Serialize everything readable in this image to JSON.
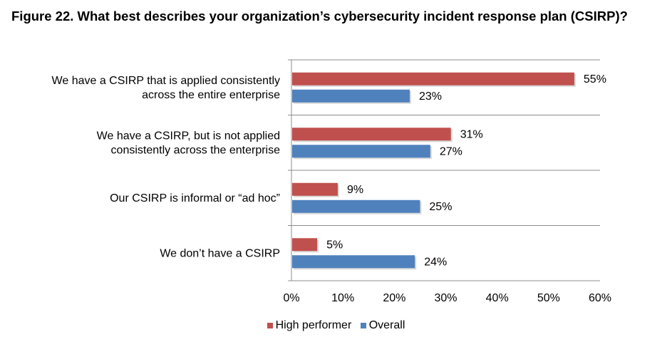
{
  "title": "Figure 22. What best describes your organization’s cybersecurity incident response plan (CSIRP)?",
  "colors": {
    "high_performer": "#C0504D",
    "overall": "#4F81BD",
    "grid": "#8C8C8C"
  },
  "chart_data": {
    "type": "bar",
    "orientation": "horizontal",
    "categories": [
      [
        "We have a CSIRP that is applied consistently",
        "across the entire enterprise"
      ],
      [
        "We have a CSIRP, but is not applied",
        "consistently across the enterprise"
      ],
      [
        "Our CSIRP is informal or “ad hoc”"
      ],
      [
        "We don’t have a CSIRP"
      ]
    ],
    "series": [
      {
        "name": "High performer",
        "values": [
          55,
          31,
          9,
          5
        ],
        "labels": [
          "55%",
          "31%",
          "9%",
          "5%"
        ]
      },
      {
        "name": "Overall",
        "values": [
          23,
          27,
          25,
          24
        ],
        "labels": [
          "23%",
          "27%",
          "25%",
          "24%"
        ]
      }
    ],
    "xlim": [
      0,
      60
    ],
    "ticks": [
      "0%",
      "10%",
      "20%",
      "30%",
      "40%",
      "50%",
      "60%"
    ],
    "grid": "horizontal separators between categories",
    "legend": "bottom-center"
  }
}
